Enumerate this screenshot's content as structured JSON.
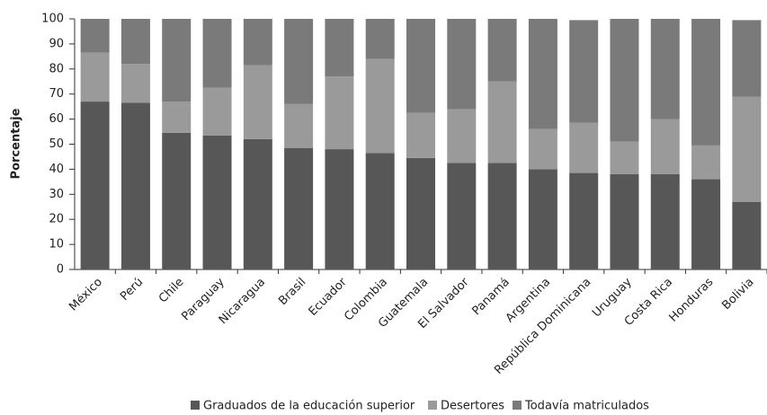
{
  "chart_data": {
    "type": "stacked_bar",
    "y_label": "Porcentaje",
    "categories": [
      "México",
      "Perú",
      "Chile",
      "Paraguay",
      "Nicaragua",
      "Brasil",
      "Ecuador",
      "Colombia",
      "Guatemala",
      "El Salvador",
      "Panamá",
      "Argentina",
      "República Dominicana",
      "Uruguay",
      "Costa Rica",
      "Honduras",
      "Bolivia"
    ],
    "series": [
      {
        "name": "Graduados de la educación superior",
        "color": "#575757",
        "values": [
          67,
          66.5,
          54.5,
          53.5,
          52,
          48.5,
          48,
          46.5,
          44.5,
          42.5,
          42.5,
          40,
          38.5,
          38,
          38,
          36,
          27
        ]
      },
      {
        "name": "Desertores",
        "color": "#9a9a9a",
        "values": [
          19.5,
          15.5,
          12.5,
          19,
          29.5,
          17.5,
          29,
          37.5,
          18,
          21.5,
          32.5,
          16,
          20,
          13,
          22,
          13.5,
          42
        ]
      },
      {
        "name": "Todavía matriculados",
        "color": "#7a7a7a",
        "values": [
          13.5,
          18,
          33,
          27.5,
          18.5,
          34,
          23,
          16,
          37.5,
          36,
          25,
          44,
          41,
          49,
          40,
          50.5,
          30.5
        ]
      }
    ],
    "ylim": [
      0,
      100
    ],
    "yticks": [
      0,
      10,
      20,
      30,
      40,
      50,
      60,
      70,
      80,
      90,
      100
    ],
    "legend": "bottom"
  }
}
